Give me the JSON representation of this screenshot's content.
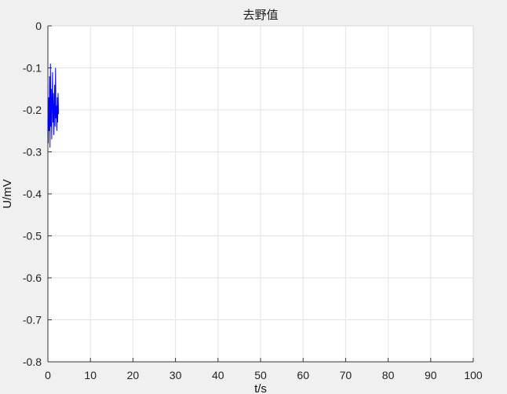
{
  "chart_data": {
    "type": "line",
    "title": "去野值",
    "xlabel": "t/s",
    "ylabel": "U/mV",
    "xlim": [
      0,
      100
    ],
    "ylim": [
      -0.8,
      0
    ],
    "xticks": [
      0,
      10,
      20,
      30,
      40,
      50,
      60,
      70,
      80,
      90,
      100
    ],
    "xtick_labels": [
      "0",
      "10",
      "20",
      "30",
      "40",
      "50",
      "60",
      "70",
      "80",
      "90",
      "100"
    ],
    "yticks": [
      0,
      -0.1,
      -0.2,
      -0.3,
      -0.4,
      -0.5,
      -0.6,
      -0.7,
      -0.8
    ],
    "ytick_labels": [
      "0",
      "-0.1",
      "-0.2",
      "-0.3",
      "-0.4",
      "-0.5",
      "-0.6",
      "-0.7",
      "-0.8"
    ],
    "grid": true,
    "series": [
      {
        "color": "#0000ff",
        "x": [
          0.0,
          0.1,
          0.2,
          0.3,
          0.4,
          0.5,
          0.6,
          0.7,
          0.8,
          0.9,
          1.0,
          1.1,
          1.2,
          1.3,
          1.4,
          1.5,
          1.6,
          1.7,
          1.8,
          1.9,
          2.0,
          2.1,
          2.2,
          2.3,
          2.4,
          2.5
        ],
        "y": [
          -0.22,
          -0.28,
          -0.17,
          -0.25,
          -0.12,
          -0.29,
          -0.09,
          -0.24,
          -0.15,
          -0.27,
          -0.18,
          -0.11,
          -0.23,
          -0.16,
          -0.26,
          -0.2,
          -0.14,
          -0.24,
          -0.1,
          -0.22,
          -0.19,
          -0.25,
          -0.17,
          -0.23,
          -0.16,
          -0.21
        ]
      }
    ]
  }
}
